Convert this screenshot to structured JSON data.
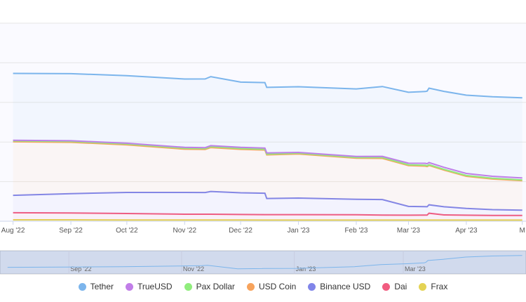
{
  "chart_data": {
    "type": "area",
    "stacked": true,
    "x": [
      "2022-08-01",
      "2022-09-01",
      "2022-10-01",
      "2022-11-01",
      "2022-11-12",
      "2022-11-15",
      "2022-12-01",
      "2022-12-14",
      "2022-12-15",
      "2023-01-01",
      "2023-02-01",
      "2023-02-15",
      "2023-03-01",
      "2023-03-10",
      "2023-03-11",
      "2023-03-12",
      "2023-03-20",
      "2023-04-01",
      "2023-04-15",
      "2023-05-01"
    ],
    "series": [
      {
        "name": "Tether",
        "color": "#7cb5ec",
        "values": [
          67.5,
          67.7,
          68.2,
          69.0,
          69.4,
          69.7,
          65.8,
          66.1,
          66.2,
          66.3,
          68.2,
          70.5,
          71.6,
          72.5,
          73.3,
          75.2,
          76.6,
          79.1,
          80.3,
          81.0
        ]
      },
      {
        "name": "TrueUSD",
        "color": "#c17ee8",
        "values": [
          0.7,
          0.7,
          0.8,
          0.9,
          0.9,
          1.0,
          1.2,
          1.2,
          1.2,
          0.8,
          1.0,
          1.2,
          1.6,
          2.0,
          2.1,
          2.1,
          2.1,
          2.0,
          2.0,
          2.0
        ]
      },
      {
        "name": "Pax Dollar",
        "color": "#90ed7d",
        "values": [
          0.9,
          0.9,
          0.9,
          0.9,
          0.9,
          0.9,
          0.9,
          0.8,
          0.8,
          0.8,
          0.8,
          0.8,
          0.8,
          0.8,
          0.8,
          0.8,
          0.8,
          0.8,
          0.8,
          0.8
        ]
      },
      {
        "name": "USD Coin",
        "color": "#f7a35c",
        "values": [
          54.0,
          51.8,
          48.0,
          43.7,
          43.5,
          44.3,
          43.9,
          43.6,
          44.0,
          44.5,
          41.5,
          41.6,
          41.2,
          41.0,
          40.6,
          39.7,
          37.0,
          32.5,
          30.9,
          29.8
        ]
      },
      {
        "name": "Binance USD",
        "color": "#8085e9",
        "values": [
          17.6,
          19.6,
          21.3,
          22.0,
          21.9,
          23.0,
          21.9,
          21.6,
          16.3,
          16.7,
          15.6,
          15.7,
          8.9,
          8.5,
          8.4,
          8.5,
          8.2,
          6.8,
          5.9,
          5.3
        ]
      },
      {
        "name": "Dai",
        "color": "#f15c80",
        "values": [
          7.2,
          6.9,
          6.5,
          5.9,
          5.9,
          5.9,
          5.6,
          5.6,
          5.6,
          5.6,
          5.4,
          5.1,
          5.0,
          5.1,
          5.1,
          7.0,
          5.3,
          5.0,
          4.7,
          4.7
        ]
      },
      {
        "name": "Frax",
        "color": "#e4d354",
        "values": [
          1.4,
          1.4,
          1.3,
          1.2,
          1.2,
          1.2,
          1.2,
          1.1,
          1.1,
          1.1,
          1.1,
          1.1,
          1.1,
          1.1,
          1.1,
          1.1,
          1.1,
          1.1,
          1.1,
          1.1
        ]
      }
    ],
    "x_tick_labels": [
      "Aug '22",
      "Sep '22",
      "Oct '22",
      "Nov '22",
      "Dec '22",
      "Jan '23",
      "Feb '23",
      "Mar '23",
      "Apr '23",
      "M"
    ],
    "navigator_tick_labels": [
      "Sep '22",
      "Nov '22",
      "Jan '23",
      "Mar '23"
    ],
    "ylim": [
      0,
      200
    ],
    "grid": true,
    "legend": "bottom-center",
    "navigator": true
  }
}
